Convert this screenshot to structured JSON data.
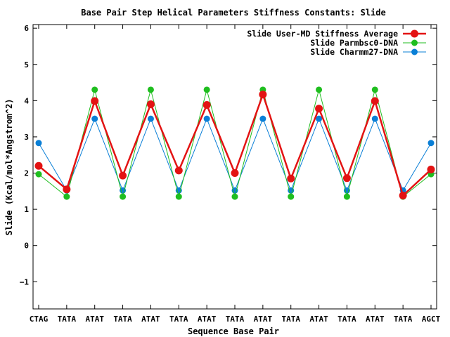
{
  "chart_data": {
    "type": "line",
    "title": "Base Pair Step Helical Parameters Stiffness Constants: Slide",
    "xlabel": "Sequence Base Pair",
    "ylabel": "Slide (Kcal/mol*Angstrom^2)",
    "categories": [
      "CTAG",
      "TATA",
      "ATAT",
      "TATA",
      "ATAT",
      "TATA",
      "ATAT",
      "TATA",
      "ATAT",
      "TATA",
      "ATAT",
      "TATA",
      "ATAT",
      "TATA",
      "AGCT"
    ],
    "ylim": [
      -1.75,
      6.1
    ],
    "yticks": [
      6,
      5,
      4,
      3,
      2,
      1,
      0,
      -1
    ],
    "ytick_labels": [
      "6",
      "5",
      "4",
      "3",
      "2",
      "1",
      "0",
      "−1"
    ],
    "legend_position": "top-right",
    "grid": false,
    "series": [
      {
        "name": "Slide Charmm27-DNA",
        "color": "#0a7fd6",
        "values": [
          2.83,
          1.52,
          3.5,
          1.52,
          3.5,
          1.52,
          3.5,
          1.52,
          3.5,
          1.52,
          3.5,
          1.52,
          3.5,
          1.52,
          2.83
        ]
      },
      {
        "name": "Slide Parmbsc0-DNA",
        "color": "#1fbe1f",
        "values": [
          1.97,
          1.35,
          4.3,
          1.35,
          4.3,
          1.35,
          4.3,
          1.35,
          4.3,
          1.35,
          4.3,
          1.35,
          4.3,
          1.35,
          1.97
        ]
      },
      {
        "name": "Slide User-MD Stiffness Average",
        "color": "#e31313",
        "values": [
          2.2,
          1.55,
          3.99,
          1.93,
          3.9,
          2.07,
          3.88,
          2.0,
          4.17,
          1.85,
          3.78,
          1.86,
          3.99,
          1.38,
          2.1
        ]
      }
    ],
    "legend_order": [
      2,
      1,
      0
    ]
  }
}
